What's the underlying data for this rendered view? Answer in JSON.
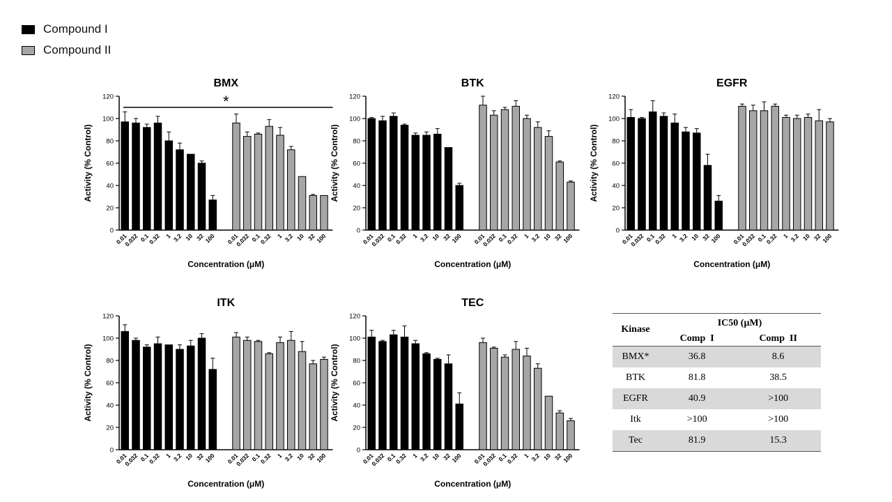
{
  "legend": [
    {
      "label": "Compound I",
      "color": "#000000"
    },
    {
      "label": "Compound II",
      "color": "#a6a6a6"
    }
  ],
  "chart_data": [
    {
      "type": "bar",
      "title": "BMX",
      "xlabel": "Concentration (μM)",
      "ylabel": "Activity (% Control)",
      "ylim": [
        0,
        120
      ],
      "yticks": [
        0,
        20,
        40,
        60,
        80,
        100,
        120
      ],
      "categories": [
        "0.01",
        "0.032",
        "0.1",
        "0.32",
        "1",
        "3.2",
        "10",
        "32",
        "100"
      ],
      "significance": "*",
      "series": [
        {
          "name": "Compound I",
          "values": [
            97,
            96,
            92,
            96,
            80,
            72,
            68,
            60,
            27
          ],
          "errors": [
            9,
            4,
            3,
            6,
            8,
            6,
            0,
            2,
            4
          ]
        },
        {
          "name": "Compound II",
          "values": [
            96,
            84,
            86,
            93,
            85,
            72,
            48,
            31,
            31
          ],
          "errors": [
            8,
            4,
            1,
            6,
            7,
            3,
            0,
            1,
            0
          ]
        }
      ]
    },
    {
      "type": "bar",
      "title": "BTK",
      "xlabel": "Concentration (μM)",
      "ylabel": "Activity (% Control)",
      "ylim": [
        0,
        120
      ],
      "yticks": [
        0,
        20,
        40,
        60,
        80,
        100,
        120
      ],
      "categories": [
        "0.01",
        "0.032",
        "0.1",
        "0.32",
        "1",
        "3.2",
        "10",
        "32",
        "100"
      ],
      "series": [
        {
          "name": "Compound I",
          "values": [
            100,
            98,
            102,
            94,
            85,
            85,
            86,
            74,
            40
          ],
          "errors": [
            1,
            4,
            3,
            1,
            2,
            3,
            5,
            0,
            2
          ]
        },
        {
          "name": "Compound II",
          "values": [
            112,
            103,
            108,
            111,
            100,
            92,
            84,
            61,
            43
          ],
          "errors": [
            8,
            4,
            2,
            5,
            3,
            5,
            5,
            1,
            1
          ]
        }
      ]
    },
    {
      "type": "bar",
      "title": "EGFR",
      "xlabel": "Concentration (μM)",
      "ylabel": "Activity (% Control)",
      "ylim": [
        0,
        120
      ],
      "yticks": [
        0,
        20,
        40,
        60,
        80,
        100,
        120
      ],
      "categories": [
        "0.01",
        "0.032",
        "0.1",
        "0.32",
        "1",
        "3.2",
        "10",
        "32",
        "100"
      ],
      "series": [
        {
          "name": "Compound I",
          "values": [
            101,
            100,
            106,
            102,
            96,
            88,
            87,
            58,
            26
          ],
          "errors": [
            7,
            1,
            10,
            3,
            8,
            4,
            4,
            10,
            5
          ]
        },
        {
          "name": "Compound II",
          "values": [
            111,
            107,
            107,
            111,
            101,
            100,
            101,
            98,
            97
          ],
          "errors": [
            2,
            5,
            8,
            2,
            2,
            3,
            3,
            10,
            3
          ]
        }
      ]
    },
    {
      "type": "bar",
      "title": "ITK",
      "xlabel": "Concentration (μM)",
      "ylabel": "Activity (% Control)",
      "ylim": [
        0,
        120
      ],
      "yticks": [
        0,
        20,
        40,
        60,
        80,
        100,
        120
      ],
      "categories": [
        "0.01",
        "0.032",
        "0.1",
        "0.32",
        "1",
        "3.2",
        "10",
        "32",
        "100"
      ],
      "series": [
        {
          "name": "Compound I",
          "values": [
            106,
            98,
            92,
            95,
            94,
            90,
            93,
            100,
            72
          ],
          "errors": [
            6,
            2,
            2,
            6,
            0,
            4,
            5,
            4,
            10
          ]
        },
        {
          "name": "Compound II",
          "values": [
            101,
            98,
            97,
            86,
            96,
            98,
            88,
            77,
            81
          ],
          "errors": [
            4,
            3,
            1,
            1,
            5,
            8,
            9,
            3,
            2
          ]
        }
      ]
    },
    {
      "type": "bar",
      "title": "TEC",
      "xlabel": "Concentration (μM)",
      "ylabel": "Activity (% Control)",
      "ylim": [
        0,
        120
      ],
      "yticks": [
        0,
        20,
        40,
        60,
        80,
        100,
        120
      ],
      "categories": [
        "0.01",
        "0.032",
        "0.1",
        "0.32",
        "1",
        "3.2",
        "10",
        "32",
        "100"
      ],
      "series": [
        {
          "name": "Compound I",
          "values": [
            101,
            97,
            103,
            101,
            95,
            86,
            81,
            77,
            41
          ],
          "errors": [
            6,
            1,
            4,
            10,
            3,
            1,
            1,
            8,
            10
          ]
        },
        {
          "name": "Compound II",
          "values": [
            96,
            91,
            83,
            90,
            84,
            73,
            48,
            33,
            26
          ],
          "errors": [
            4,
            1,
            2,
            7,
            7,
            4,
            0,
            2,
            2
          ]
        }
      ]
    }
  ],
  "table": {
    "kinase_header": "Kinase",
    "ic50_header": "IC50 (μM)",
    "col1_header": "Comp  I",
    "col2_header": "Comp  II",
    "rows": [
      {
        "kinase": "BMX*",
        "comp1": "36.8",
        "comp2": "8.6"
      },
      {
        "kinase": "BTK",
        "comp1": "81.8",
        "comp2": "38.5"
      },
      {
        "kinase": "EGFR",
        "comp1": "40.9",
        "comp2": ">100"
      },
      {
        "kinase": "Itk",
        "comp1": ">100",
        "comp2": ">100"
      },
      {
        "kinase": "Tec",
        "comp1": "81.9",
        "comp2": "15.3"
      }
    ]
  }
}
